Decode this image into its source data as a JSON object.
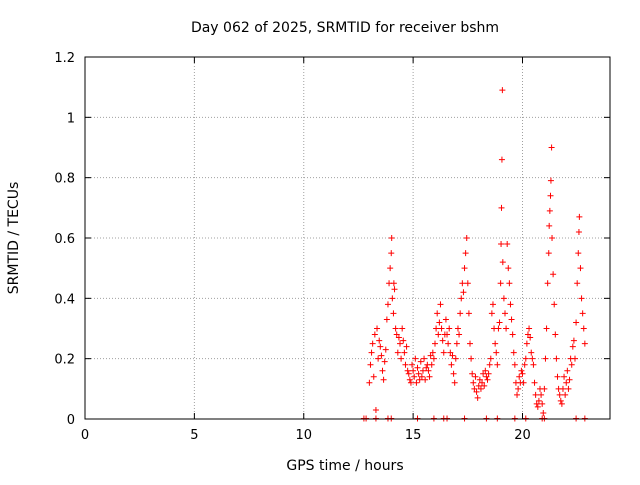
{
  "chart_data": {
    "type": "scatter",
    "title": "Day 062 of 2025, SRMTID for receiver bshm",
    "xlabel": "GPS time / hours",
    "ylabel": "SRMTID / TECUs",
    "xlim": [
      0,
      24
    ],
    "ylim": [
      0,
      1.2
    ],
    "xticks": [
      0,
      5,
      10,
      15,
      20
    ],
    "xtick_labels": [
      "0",
      "5",
      "10",
      "15",
      "20"
    ],
    "yticks": [
      0,
      0.2,
      0.4,
      0.6,
      0.8,
      1.0,
      1.2
    ],
    "ytick_labels": [
      "0",
      "0.2",
      "0.4",
      "0.6",
      "0.8",
      "1",
      "1.2"
    ],
    "grid": true,
    "marker": "+",
    "series": [
      {
        "name": "SRMTID",
        "color": "#ff0000",
        "points": [
          [
            12.75,
            0.0
          ],
          [
            12.85,
            0.0
          ],
          [
            13.0,
            0.12
          ],
          [
            13.05,
            0.18
          ],
          [
            13.1,
            0.22
          ],
          [
            13.15,
            0.25
          ],
          [
            13.2,
            0.14
          ],
          [
            13.25,
            0.28
          ],
          [
            13.3,
            0.03
          ],
          [
            13.35,
            0.3
          ],
          [
            13.4,
            0.2
          ],
          [
            13.45,
            0.26
          ],
          [
            13.5,
            0.24
          ],
          [
            13.55,
            0.21
          ],
          [
            13.6,
            0.16
          ],
          [
            13.65,
            0.13
          ],
          [
            13.7,
            0.19
          ],
          [
            13.75,
            0.23
          ],
          [
            13.8,
            0.33
          ],
          [
            13.85,
            0.38
          ],
          [
            13.9,
            0.45
          ],
          [
            13.95,
            0.5
          ],
          [
            14.0,
            0.55
          ],
          [
            14.02,
            0.6
          ],
          [
            14.05,
            0.4
          ],
          [
            14.1,
            0.35
          ],
          [
            14.12,
            0.45
          ],
          [
            14.15,
            0.43
          ],
          [
            14.2,
            0.3
          ],
          [
            14.25,
            0.28
          ],
          [
            14.3,
            0.22
          ],
          [
            14.35,
            0.27
          ],
          [
            14.4,
            0.25
          ],
          [
            14.45,
            0.2
          ],
          [
            14.5,
            0.3
          ],
          [
            14.55,
            0.26
          ],
          [
            14.6,
            0.22
          ],
          [
            14.65,
            0.18
          ],
          [
            14.7,
            0.24
          ],
          [
            14.75,
            0.16
          ],
          [
            14.8,
            0.15
          ],
          [
            14.85,
            0.13
          ],
          [
            14.9,
            0.12
          ],
          [
            14.95,
            0.18
          ],
          [
            15.0,
            0.16
          ],
          [
            15.05,
            0.14
          ],
          [
            15.1,
            0.2
          ],
          [
            15.15,
            0.12
          ],
          [
            15.2,
            0.17
          ],
          [
            15.25,
            0.15
          ],
          [
            15.3,
            0.13
          ],
          [
            15.35,
            0.19
          ],
          [
            15.4,
            0.14
          ],
          [
            15.45,
            0.16
          ],
          [
            15.5,
            0.2
          ],
          [
            15.55,
            0.13
          ],
          [
            15.6,
            0.17
          ],
          [
            15.65,
            0.18
          ],
          [
            15.7,
            0.16
          ],
          [
            15.75,
            0.14
          ],
          [
            15.8,
            0.21
          ],
          [
            15.85,
            0.18
          ],
          [
            15.9,
            0.22
          ],
          [
            15.95,
            0.2
          ],
          [
            16.0,
            0.25
          ],
          [
            16.05,
            0.3
          ],
          [
            16.1,
            0.35
          ],
          [
            16.15,
            0.28
          ],
          [
            16.2,
            0.32
          ],
          [
            16.25,
            0.38
          ],
          [
            16.3,
            0.3
          ],
          [
            16.35,
            0.26
          ],
          [
            16.4,
            0.22
          ],
          [
            16.45,
            0.28
          ],
          [
            16.5,
            0.33
          ],
          [
            16.55,
            0.28
          ],
          [
            16.6,
            0.25
          ],
          [
            16.65,
            0.3
          ],
          [
            16.7,
            0.22
          ],
          [
            16.75,
            0.18
          ],
          [
            16.8,
            0.21
          ],
          [
            16.85,
            0.15
          ],
          [
            16.9,
            0.12
          ],
          [
            16.95,
            0.2
          ],
          [
            17.0,
            0.25
          ],
          [
            17.05,
            0.3
          ],
          [
            17.1,
            0.28
          ],
          [
            17.15,
            0.35
          ],
          [
            17.2,
            0.4
          ],
          [
            17.25,
            0.45
          ],
          [
            17.3,
            0.42
          ],
          [
            17.35,
            0.5
          ],
          [
            17.4,
            0.55
          ],
          [
            17.45,
            0.6
          ],
          [
            17.5,
            0.45
          ],
          [
            17.55,
            0.35
          ],
          [
            17.6,
            0.25
          ],
          [
            17.65,
            0.2
          ],
          [
            17.7,
            0.15
          ],
          [
            17.75,
            0.12
          ],
          [
            17.8,
            0.1
          ],
          [
            17.85,
            0.14
          ],
          [
            17.9,
            0.09
          ],
          [
            17.95,
            0.07
          ],
          [
            18.0,
            0.11
          ],
          [
            18.05,
            0.13
          ],
          [
            18.1,
            0.1
          ],
          [
            18.15,
            0.12
          ],
          [
            18.2,
            0.15
          ],
          [
            18.25,
            0.11
          ],
          [
            18.3,
            0.16
          ],
          [
            18.35,
            0.14
          ],
          [
            18.4,
            0.13
          ],
          [
            18.45,
            0.15
          ],
          [
            18.5,
            0.18
          ],
          [
            18.55,
            0.2
          ],
          [
            18.6,
            0.35
          ],
          [
            18.65,
            0.38
          ],
          [
            18.7,
            0.3
          ],
          [
            18.75,
            0.25
          ],
          [
            18.8,
            0.22
          ],
          [
            18.85,
            0.18
          ],
          [
            18.9,
            0.3
          ],
          [
            18.95,
            0.32
          ],
          [
            19.0,
            0.45
          ],
          [
            19.02,
            0.58
          ],
          [
            19.04,
            0.7
          ],
          [
            19.06,
            0.86
          ],
          [
            19.08,
            1.09
          ],
          [
            19.1,
            0.52
          ],
          [
            19.15,
            0.4
          ],
          [
            19.2,
            0.35
          ],
          [
            19.25,
            0.3
          ],
          [
            19.3,
            0.58
          ],
          [
            19.35,
            0.5
          ],
          [
            19.4,
            0.45
          ],
          [
            19.45,
            0.38
          ],
          [
            19.5,
            0.33
          ],
          [
            19.55,
            0.28
          ],
          [
            19.6,
            0.22
          ],
          [
            19.65,
            0.18
          ],
          [
            19.7,
            0.12
          ],
          [
            19.75,
            0.08
          ],
          [
            19.8,
            0.1
          ],
          [
            19.85,
            0.14
          ],
          [
            19.9,
            0.12
          ],
          [
            19.95,
            0.16
          ],
          [
            20.0,
            0.15
          ],
          [
            20.05,
            0.12
          ],
          [
            20.1,
            0.18
          ],
          [
            20.15,
            0.2
          ],
          [
            20.2,
            0.25
          ],
          [
            20.25,
            0.28
          ],
          [
            20.3,
            0.3
          ],
          [
            20.35,
            0.27
          ],
          [
            20.4,
            0.22
          ],
          [
            20.45,
            0.2
          ],
          [
            20.5,
            0.18
          ],
          [
            20.55,
            0.12
          ],
          [
            20.6,
            0.08
          ],
          [
            20.65,
            0.05
          ],
          [
            20.7,
            0.04
          ],
          [
            20.75,
            0.06
          ],
          [
            20.8,
            0.1
          ],
          [
            20.85,
            0.08
          ],
          [
            20.9,
            0.05
          ],
          [
            20.95,
            0.02
          ],
          [
            21.0,
            0.1
          ],
          [
            21.05,
            0.2
          ],
          [
            21.1,
            0.3
          ],
          [
            21.15,
            0.45
          ],
          [
            21.2,
            0.55
          ],
          [
            21.22,
            0.64
          ],
          [
            21.25,
            0.69
          ],
          [
            21.28,
            0.74
          ],
          [
            21.3,
            0.79
          ],
          [
            21.33,
            0.9
          ],
          [
            21.35,
            0.6
          ],
          [
            21.4,
            0.48
          ],
          [
            21.45,
            0.38
          ],
          [
            21.5,
            0.28
          ],
          [
            21.55,
            0.2
          ],
          [
            21.6,
            0.14
          ],
          [
            21.65,
            0.1
          ],
          [
            21.7,
            0.08
          ],
          [
            21.75,
            0.06
          ],
          [
            21.8,
            0.05
          ],
          [
            21.85,
            0.1
          ],
          [
            21.9,
            0.14
          ],
          [
            21.95,
            0.08
          ],
          [
            22.0,
            0.12
          ],
          [
            22.05,
            0.16
          ],
          [
            22.1,
            0.1
          ],
          [
            22.15,
            0.13
          ],
          [
            22.2,
            0.2
          ],
          [
            22.25,
            0.18
          ],
          [
            22.3,
            0.24
          ],
          [
            22.35,
            0.26
          ],
          [
            22.4,
            0.2
          ],
          [
            22.45,
            0.32
          ],
          [
            22.5,
            0.45
          ],
          [
            22.55,
            0.55
          ],
          [
            22.58,
            0.62
          ],
          [
            22.6,
            0.67
          ],
          [
            22.65,
            0.5
          ],
          [
            22.7,
            0.4
          ],
          [
            22.75,
            0.35
          ],
          [
            22.8,
            0.3
          ],
          [
            22.85,
            0.25
          ],
          [
            13.3,
            0.0
          ],
          [
            13.85,
            0.0
          ],
          [
            14.0,
            0.0
          ],
          [
            15.2,
            0.0
          ],
          [
            15.95,
            0.0
          ],
          [
            16.4,
            0.0
          ],
          [
            16.55,
            0.0
          ],
          [
            17.35,
            0.0
          ],
          [
            18.35,
            0.0
          ],
          [
            18.85,
            0.0
          ],
          [
            19.65,
            0.0
          ],
          [
            20.15,
            0.0
          ],
          [
            20.9,
            0.0
          ],
          [
            21.0,
            0.0
          ],
          [
            22.45,
            0.0
          ],
          [
            22.85,
            0.0
          ]
        ]
      }
    ]
  }
}
